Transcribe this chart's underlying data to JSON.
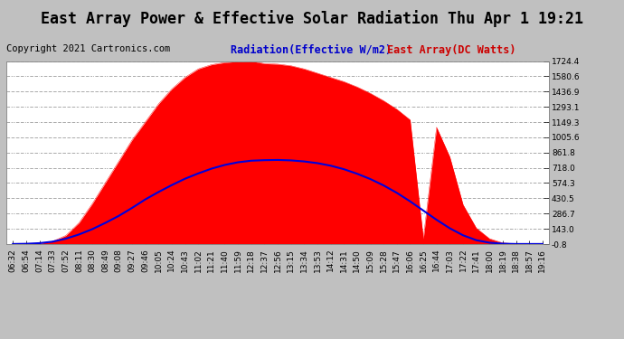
{
  "title": "East Array Power & Effective Solar Radiation Thu Apr 1 19:21",
  "copyright": "Copyright 2021 Cartronics.com",
  "legend_radiation": "Radiation(Effective W/m2)",
  "legend_east": "East Array(DC Watts)",
  "legend_radiation_color": "#0000cc",
  "legend_east_color": "#cc0000",
  "bg_color": "#d8d8d8",
  "plot_bg_color": "#ffffff",
  "outer_bg_color": "#c0c0c0",
  "grid_h_color": "#aaaaaa",
  "grid_v_color": "#ffffff",
  "title_color": "#000000",
  "copyright_color": "#000000",
  "yticks": [
    -0.8,
    143.0,
    286.7,
    430.5,
    574.3,
    718.0,
    861.8,
    1005.6,
    1149.3,
    1293.1,
    1436.9,
    1580.6,
    1724.4
  ],
  "ymin": -0.8,
  "ymax": 1724.4,
  "x_times": [
    "06:32",
    "06:54",
    "07:14",
    "07:33",
    "07:52",
    "08:11",
    "08:30",
    "08:49",
    "09:08",
    "09:27",
    "09:46",
    "10:05",
    "10:24",
    "10:43",
    "11:02",
    "11:21",
    "11:40",
    "11:59",
    "12:18",
    "12:37",
    "12:56",
    "13:15",
    "13:34",
    "13:53",
    "14:12",
    "14:31",
    "14:50",
    "15:09",
    "15:28",
    "15:47",
    "16:06",
    "16:25",
    "16:44",
    "17:03",
    "17:22",
    "17:41",
    "18:00",
    "18:19",
    "18:38",
    "18:57",
    "19:16"
  ],
  "radiation_values": [
    0,
    2,
    8,
    22,
    50,
    90,
    140,
    200,
    265,
    340,
    420,
    490,
    555,
    615,
    665,
    710,
    745,
    770,
    785,
    790,
    792,
    788,
    778,
    762,
    738,
    705,
    662,
    612,
    552,
    482,
    402,
    315,
    228,
    148,
    82,
    36,
    12,
    3,
    0,
    0,
    0
  ],
  "east_array_values": [
    0,
    0,
    5,
    25,
    80,
    200,
    380,
    580,
    780,
    980,
    1150,
    1320,
    1460,
    1570,
    1650,
    1690,
    1710,
    1720,
    1724,
    1700,
    1695,
    1680,
    1650,
    1610,
    1570,
    1530,
    1480,
    1420,
    1350,
    1270,
    1170,
    50,
    1100,
    820,
    370,
    150,
    50,
    10,
    2,
    0,
    0
  ],
  "fill_color": "#ff0000",
  "fill_alpha": 1.0,
  "line_color": "#0000dd",
  "line_width": 1.5,
  "tick_label_color": "#000000",
  "right_tick_color": "#000000",
  "tick_fontsize": 6.5,
  "title_fontsize": 12,
  "copyright_fontsize": 7.5,
  "legend_fontsize": 8.5
}
